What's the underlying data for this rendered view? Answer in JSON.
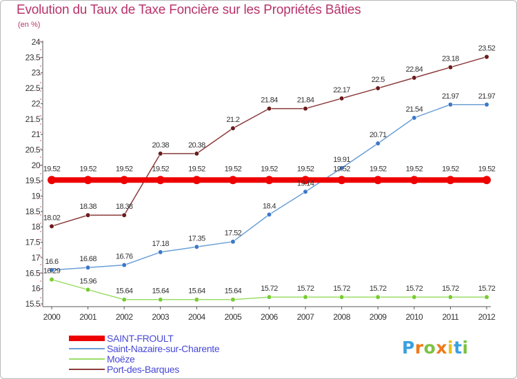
{
  "chart_data": {
    "type": "line",
    "title": "Evolution du Taux de Taxe Foncière sur les Propriétés Bâties",
    "subtitle": "(en %)",
    "xlabel": "",
    "ylabel": "",
    "x": [
      "2000",
      "2001",
      "2002",
      "2003",
      "2004",
      "2005",
      "2006",
      "2007",
      "2008",
      "2009",
      "2010",
      "2011",
      "2012"
    ],
    "ylim": [
      15.5,
      24
    ],
    "yticks": [
      "15.5",
      "16",
      "16.5",
      "17",
      "17.5",
      "18",
      "18.5",
      "19",
      "19.5",
      "20",
      "20.5",
      "21",
      "21.5",
      "22",
      "22.5",
      "23",
      "23.5",
      "24"
    ],
    "series": [
      {
        "name": "SAINT-FROULT",
        "color": "#ee0000",
        "marker": "#ee0000",
        "values": [
          19.52,
          19.52,
          19.52,
          19.52,
          19.52,
          19.52,
          19.52,
          19.52,
          19.52,
          19.52,
          19.52,
          19.52,
          19.52
        ],
        "labels": [
          "19.52",
          "19.52",
          "19.52",
          "19.52",
          "19.52",
          "19.52",
          "19.52",
          "19.52",
          "19.52",
          "19.52",
          "19.52",
          "19.52",
          "19.52"
        ]
      },
      {
        "name": "Saint-Nazaire-sur-Charente",
        "color": "#6a9fd6",
        "marker": "#3c78c8",
        "values": [
          16.6,
          16.68,
          16.76,
          17.18,
          17.35,
          17.52,
          18.4,
          19.14,
          19.91,
          20.71,
          21.54,
          21.97,
          21.97
        ],
        "labels": [
          "16.6",
          "16.68",
          "16.76",
          "17.18",
          "17.35",
          "17.52",
          "18.4",
          "19.14",
          "19.91",
          "20.71",
          "21.54",
          "21.97",
          "21.97"
        ]
      },
      {
        "name": "Moëze",
        "color": "#99dd66",
        "marker": "#77cc33",
        "values": [
          16.29,
          15.96,
          15.64,
          15.64,
          15.64,
          15.64,
          15.72,
          15.72,
          15.72,
          15.72,
          15.72,
          15.72,
          15.72
        ],
        "labels": [
          "16.29",
          "15.96",
          "15.64",
          "15.64",
          "15.64",
          "15.64",
          "15.72",
          "15.72",
          "15.72",
          "15.72",
          "15.72",
          "15.72",
          "15.72"
        ]
      },
      {
        "name": "Port-des-Barques",
        "color": "#8b3a3a",
        "marker": "#6b1c1c",
        "values": [
          18.02,
          18.38,
          18.38,
          20.38,
          20.38,
          21.2,
          21.84,
          21.84,
          22.17,
          22.5,
          22.84,
          23.18,
          23.52
        ],
        "labels": [
          "18.02",
          "18.38",
          "18.38",
          "20.38",
          "20.38",
          "21.2",
          "21.84",
          "21.84",
          "22.17",
          "22.5",
          "22.84",
          "23.18",
          "23.52"
        ]
      }
    ],
    "legend_position": "bottom-left",
    "grid": false
  },
  "logo": {
    "letters": [
      "P",
      "r",
      "o",
      "x",
      "i",
      "t",
      "i"
    ],
    "colors": [
      "#3aa0e0",
      "#f07a1a",
      "#7cc242",
      "#f07a1a",
      "#e8c21a",
      "#3aa0e0",
      "#7cc242"
    ]
  }
}
